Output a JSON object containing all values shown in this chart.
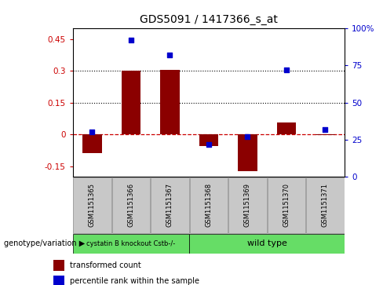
{
  "title": "GDS5091 / 1417366_s_at",
  "categories": [
    "GSM1151365",
    "GSM1151366",
    "GSM1151367",
    "GSM1151368",
    "GSM1151369",
    "GSM1151370",
    "GSM1151371"
  ],
  "red_values": [
    -0.09,
    0.3,
    0.305,
    -0.055,
    -0.175,
    0.055,
    -0.005
  ],
  "blue_values": [
    30,
    92,
    82,
    22,
    27,
    72,
    32
  ],
  "ylim_left": [
    -0.2,
    0.5
  ],
  "ylim_right": [
    0,
    100
  ],
  "yticks_left": [
    -0.15,
    0,
    0.15,
    0.3,
    0.45
  ],
  "yticks_right": [
    0,
    25,
    50,
    75,
    100
  ],
  "hlines": [
    0.15,
    0.3
  ],
  "group1_label": "cystatin B knockout Cstb-/-",
  "group1_count": 3,
  "group2_label": "wild type",
  "group2_count": 4,
  "group_label_text": "genotype/variation",
  "legend_red": "transformed count",
  "legend_blue": "percentile rank within the sample",
  "bar_color": "#8B0000",
  "dot_color": "#0000CD",
  "sample_box_color": "#C8C8C8",
  "group_box_color": "#66DD66",
  "ax_bg": "#FFFFFF",
  "bar_width": 0.5
}
